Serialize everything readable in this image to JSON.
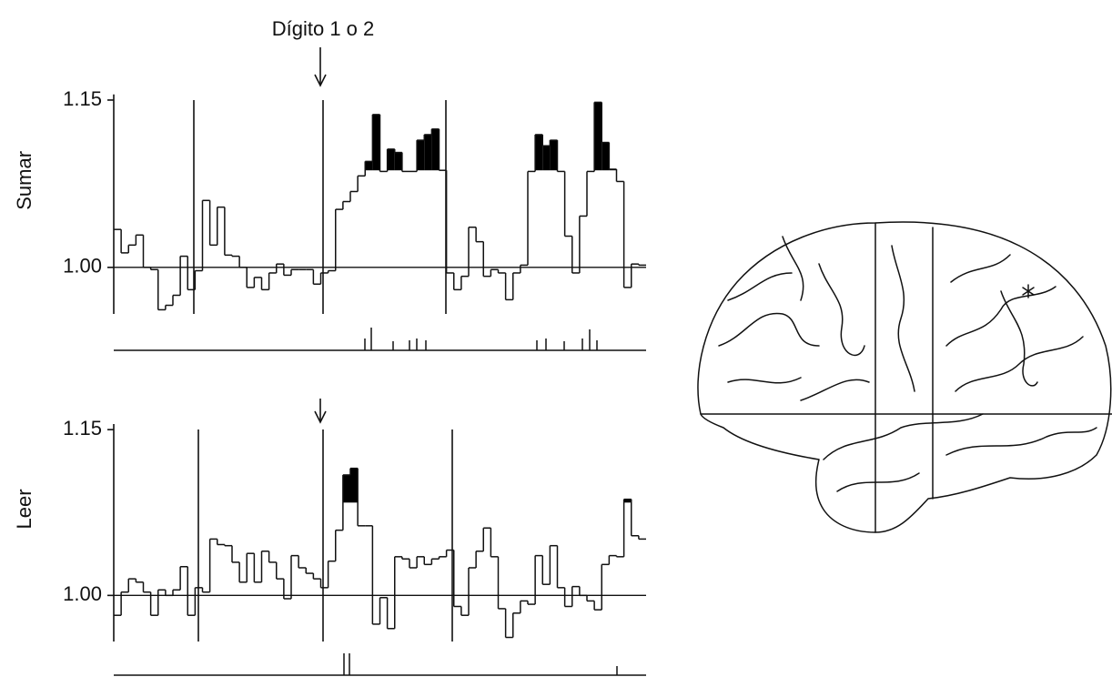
{
  "chart_data": [
    {
      "type": "step",
      "annotation": "Dígito 1 o 2",
      "y_label": "Sumar",
      "color": "#111111",
      "fill_color": "#000000",
      "ylim": [
        0.955,
        1.16
      ],
      "yticks": [
        {
          "value": 1.0,
          "label": "1.00"
        },
        1.15
      ],
      "threshold": 1.087,
      "values": [
        1.034,
        1.013,
        1.02,
        1.029,
        1.0,
        0.998,
        0.962,
        0.966,
        0.975,
        1.01,
        0.98,
        0.997,
        1.06,
        1.02,
        1.054,
        1.011,
        1.01,
        1.0,
        0.982,
        0.991,
        0.98,
        0.995,
        1.003,
        0.993,
        0.998,
        0.998,
        0.998,
        0.985,
        0.995,
        0.997,
        1.052,
        1.059,
        1.068,
        1.082,
        1.095,
        1.137,
        1.086,
        1.106,
        1.103,
        1.086,
        1.086,
        1.114,
        1.119,
        1.124,
        1.087,
        0.995,
        0.98,
        0.992,
        1.036,
        1.023,
        0.992,
        0.998,
        0.995,
        0.971,
        0.995,
        1.002,
        1.086,
        1.119,
        1.109,
        1.114,
        1.086,
        1.028,
        0.995,
        1.046,
        1.086,
        1.148,
        1.112,
        1.088,
        1.077,
        0.982,
        1.003,
        1.002
      ]
    },
    {
      "type": "step",
      "y_label": "Leer",
      "color": "#111111",
      "fill_color": "#000000",
      "ylim": [
        0.955,
        1.16
      ],
      "yticks": [
        {
          "value": 1.0,
          "label": "1.00"
        },
        1.15
      ],
      "threshold": 1.084,
      "values": [
        0.982,
        1.003,
        1.015,
        1.012,
        1.003,
        0.982,
        1.005,
        1.0,
        1.005,
        1.026,
        0.982,
        1.007,
        1.003,
        1.051,
        1.046,
        1.045,
        1.03,
        1.012,
        1.038,
        1.012,
        1.04,
        1.03,
        1.015,
        0.997,
        1.036,
        1.025,
        1.02,
        1.015,
        1.007,
        1.031,
        1.059,
        1.109,
        1.115,
        1.063,
        1.063,
        0.974,
        0.998,
        0.97,
        1.035,
        1.033,
        1.025,
        1.035,
        1.028,
        1.033,
        1.035,
        1.041,
        0.99,
        0.982,
        1.025,
        1.04,
        1.061,
        1.035,
        0.988,
        0.962,
        0.984,
        0.995,
        0.992,
        1.036,
        1.01,
        1.045,
        1.007,
        0.99,
        1.008,
        1.0,
        0.995,
        0.987,
        1.028,
        1.036,
        1.035,
        1.087,
        1.054,
        1.051
      ]
    }
  ]
}
